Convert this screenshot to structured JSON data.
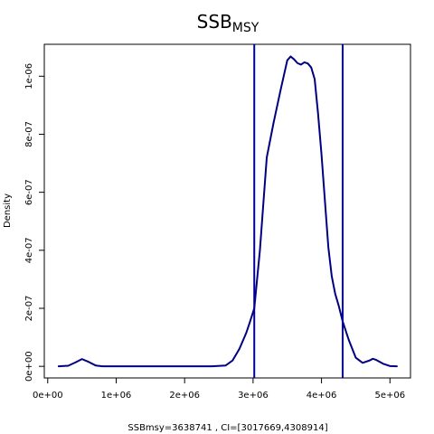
{
  "chart_data": {
    "type": "line",
    "title": {
      "main": "SSB",
      "sub": "MSY"
    },
    "xlabel": "SSBmsy=3638741 , CI=[3017669,4308914]",
    "ylabel": "Density",
    "xlim": [
      -50000,
      5300000
    ],
    "ylim": [
      -4e-08,
      1.11e-06
    ],
    "x_ticks": [
      {
        "value": 0,
        "label": "0e+00"
      },
      {
        "value": 1000000,
        "label": "1e+06"
      },
      {
        "value": 2000000,
        "label": "2e+06"
      },
      {
        "value": 3000000,
        "label": "3e+06"
      },
      {
        "value": 4000000,
        "label": "4e+06"
      },
      {
        "value": 5000000,
        "label": "5e+06"
      }
    ],
    "y_ticks": [
      {
        "value": 0,
        "label": "0e+00"
      },
      {
        "value": 2e-07,
        "label": "2e-07"
      },
      {
        "value": 4e-07,
        "label": "4e-07"
      },
      {
        "value": 6e-07,
        "label": "6e-07"
      },
      {
        "value": 8e-07,
        "label": "8e-07"
      },
      {
        "value": 1e-06,
        "label": "1e-06"
      }
    ],
    "series": [
      {
        "color": "#000080",
        "x": [
          160000,
          300000,
          400000,
          500000,
          600000,
          700000,
          800000,
          1000000,
          1500000,
          2000000,
          2400000,
          2600000,
          2700000,
          2800000,
          2900000,
          2950000,
          3017669,
          3100000,
          3150000,
          3200000,
          3300000,
          3400000,
          3500000,
          3550000,
          3600000,
          3650000,
          3700000,
          3750000,
          3800000,
          3850000,
          3900000,
          3950000,
          4000000,
          4050000,
          4100000,
          4150000,
          4200000,
          4250000,
          4308914,
          4400000,
          4500000,
          4600000,
          4700000,
          4750000,
          4800000,
          4900000,
          5000000,
          5100000
        ],
        "y": [
          0,
          2e-09,
          1.3e-08,
          2.5e-08,
          1.5e-08,
          3e-09,
          0,
          0,
          0,
          0,
          0,
          3e-09,
          2e-08,
          6e-08,
          1.15e-07,
          1.5e-07,
          2e-07,
          4e-07,
          5.6e-07,
          7.2e-07,
          8.4e-07,
          9.5e-07,
          1.055e-06,
          1.068e-06,
          1.058e-06,
          1.045e-06,
          1.04e-06,
          1.048e-06,
          1.044e-06,
          1.03e-06,
          9.9e-07,
          8.7e-07,
          7.3e-07,
          5.7e-07,
          4.1e-07,
          3.1e-07,
          2.5e-07,
          2.1e-07,
          1.55e-07,
          9e-08,
          3e-08,
          1.2e-08,
          2e-08,
          2.6e-08,
          2.2e-08,
          9e-09,
          1e-09,
          0
        ]
      }
    ],
    "vlines": [
      {
        "x": 3017669,
        "color": "#000099"
      },
      {
        "x": 4308914,
        "color": "#000099"
      }
    ]
  }
}
